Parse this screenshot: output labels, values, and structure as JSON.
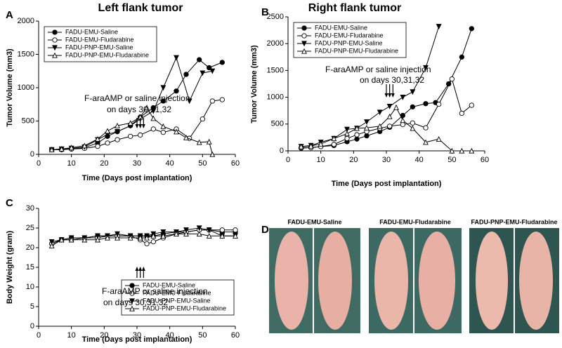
{
  "chart_data": [
    {
      "type": "line",
      "panel": "A",
      "title": "Left flank tumor",
      "xlabel": "Time (Days post implantation)",
      "ylabel": "Tumor Volume (mm3)",
      "xlim": [
        0,
        60
      ],
      "ylim": [
        0,
        2000
      ],
      "xticks": [
        0,
        10,
        20,
        30,
        40,
        50,
        60
      ],
      "yticks": [
        0,
        500,
        1000,
        1500,
        2000
      ],
      "legend": "upper left",
      "annotation": [
        "F-araAMP or saline injection",
        "on days 30,31,32"
      ],
      "series": [
        {
          "name": "FADU-EMU-Saline",
          "color": "#000000",
          "marker": "filled-circle",
          "x": [
            4,
            7,
            10,
            14,
            18,
            21,
            24,
            28,
            31,
            35,
            38,
            42,
            45,
            49,
            52,
            56
          ],
          "values": [
            70,
            70,
            80,
            100,
            170,
            270,
            340,
            430,
            560,
            700,
            800,
            950,
            1200,
            1420,
            1300,
            1380
          ]
        },
        {
          "name": "FADU-EMU-Fludarabine",
          "color": "#000000",
          "marker": "open-circle",
          "x": [
            4,
            7,
            10,
            14,
            18,
            21,
            24,
            28,
            31,
            35,
            38,
            42,
            46,
            50,
            53,
            56
          ],
          "values": [
            70,
            75,
            80,
            90,
            120,
            170,
            220,
            270,
            290,
            380,
            330,
            380,
            240,
            530,
            800,
            820
          ]
        },
        {
          "name": "FADU-PNP-EMU-Saline",
          "color": "#000000",
          "marker": "filled-triangle-down",
          "x": [
            4,
            7,
            10,
            14,
            18,
            21,
            24,
            28,
            31,
            35,
            38,
            42,
            46,
            50,
            53
          ],
          "values": [
            70,
            80,
            90,
            110,
            220,
            300,
            340,
            430,
            530,
            650,
            1000,
            1450,
            800,
            1220,
            1250
          ]
        },
        {
          "name": "FADU-PNP-EMU-Fludarabine",
          "color": "#000000",
          "marker": "open-triangle-up",
          "x": [
            4,
            7,
            10,
            14,
            18,
            21,
            24,
            28,
            31,
            33,
            35,
            38,
            42,
            45,
            49,
            52,
            53
          ],
          "values": [
            70,
            80,
            100,
            130,
            230,
            350,
            430,
            470,
            560,
            700,
            540,
            420,
            340,
            250,
            180,
            190,
            0
          ]
        }
      ]
    },
    {
      "type": "line",
      "panel": "B",
      "title": "Right flank tumor",
      "xlabel": "Time (Days post implantation)",
      "ylabel": "Tumor Volume (mm3)",
      "xlim": [
        0,
        60
      ],
      "ylim": [
        0,
        2500
      ],
      "xticks": [
        0,
        10,
        20,
        30,
        40,
        50,
        60
      ],
      "yticks": [
        0,
        500,
        1000,
        1500,
        2000,
        2500
      ],
      "legend": "upper left",
      "annotation": [
        "F-araAMP or saline injection",
        "on days 30,31,32"
      ],
      "series": [
        {
          "name": "FADU-EMU-Saline",
          "color": "#000000",
          "marker": "filled-circle",
          "x": [
            4,
            7,
            10,
            14,
            18,
            21,
            24,
            28,
            31,
            35,
            38,
            42,
            45,
            49,
            53,
            56
          ],
          "values": [
            50,
            60,
            80,
            100,
            170,
            220,
            280,
            360,
            440,
            660,
            820,
            880,
            900,
            1250,
            1750,
            2280
          ]
        },
        {
          "name": "FADU-EMU-Fludarabine",
          "color": "#000000",
          "marker": "open-circle",
          "x": [
            4,
            7,
            10,
            14,
            18,
            21,
            24,
            28,
            31,
            35,
            38,
            42,
            46,
            50,
            53,
            56
          ],
          "values": [
            60,
            60,
            80,
            120,
            230,
            300,
            360,
            420,
            460,
            490,
            520,
            430,
            870,
            1340,
            700,
            850
          ]
        },
        {
          "name": "FADU-PNP-EMU-Saline",
          "color": "#000000",
          "marker": "filled-triangle-down",
          "x": [
            4,
            7,
            10,
            14,
            18,
            21,
            24,
            28,
            31,
            35,
            38,
            42,
            46
          ],
          "values": [
            80,
            100,
            160,
            230,
            400,
            420,
            540,
            720,
            830,
            1000,
            1100,
            1550,
            2320
          ]
        },
        {
          "name": "FADU-PNP-EMU-Fludarabine",
          "color": "#000000",
          "marker": "open-triangle-up",
          "x": [
            4,
            7,
            10,
            14,
            18,
            21,
            24,
            28,
            31,
            33,
            35,
            38,
            42,
            46,
            50,
            53,
            56
          ],
          "values": [
            80,
            90,
            130,
            230,
            320,
            420,
            430,
            460,
            640,
            810,
            570,
            420,
            160,
            220,
            0,
            0,
            0
          ]
        }
      ]
    },
    {
      "type": "line",
      "panel": "C",
      "xlabel": "Time (Days post implantation)",
      "ylabel": "Body Weight (gram)",
      "xlim": [
        0,
        60
      ],
      "ylim": [
        0,
        30
      ],
      "xticks": [
        0,
        10,
        20,
        30,
        40,
        50,
        60
      ],
      "yticks": [
        0,
        5,
        10,
        15,
        20,
        25,
        30
      ],
      "legend": "lower right",
      "annotation": [
        "F-araAMP or saline injection",
        "on days 30,31,32"
      ],
      "series": [
        {
          "name": "FADU-EMU-Saline",
          "color": "#000000",
          "marker": "filled-circle",
          "x": [
            4,
            7,
            10,
            14,
            18,
            21,
            24,
            28,
            31,
            33,
            35,
            38,
            42,
            45,
            49,
            52,
            56,
            60
          ],
          "values": [
            21,
            22,
            22.5,
            22.5,
            23,
            23,
            23,
            23,
            23,
            23,
            23,
            23.5,
            24,
            24,
            24.5,
            24.5,
            24,
            24
          ]
        },
        {
          "name": "FADU-EMU-Fludarabine",
          "color": "#000000",
          "marker": "open-circle",
          "x": [
            4,
            7,
            10,
            14,
            18,
            21,
            24,
            28,
            31,
            33,
            35,
            38,
            42,
            45,
            49,
            52,
            56,
            60
          ],
          "values": [
            21,
            22,
            22,
            22.5,
            22.5,
            23,
            23,
            23,
            22,
            21,
            21.5,
            22.5,
            23.5,
            24,
            24.5,
            24.5,
            24.5,
            24.5
          ]
        },
        {
          "name": "FADU-PNP-EMU-Saline",
          "color": "#000000",
          "marker": "filled-triangle-down",
          "x": [
            4,
            7,
            10,
            14,
            18,
            21,
            24,
            28,
            31,
            33,
            35,
            38,
            42,
            45,
            49,
            52,
            56,
            60
          ],
          "values": [
            21.5,
            22,
            22.5,
            22.5,
            23,
            23,
            23.5,
            23,
            23,
            23,
            23.5,
            24,
            24,
            24.5,
            25,
            24.5,
            23,
            23
          ]
        },
        {
          "name": "FADU-PNP-EMU-Fludarabine",
          "color": "#000000",
          "marker": "open-triangle-up",
          "x": [
            4,
            7,
            10,
            14,
            18,
            21,
            24,
            28,
            31,
            33,
            35,
            38,
            42,
            45,
            49,
            52,
            56,
            60
          ],
          "values": [
            20.5,
            22,
            22,
            22,
            22,
            22.5,
            22.5,
            22.5,
            22.5,
            22.5,
            23,
            23,
            23.5,
            23.5,
            23.5,
            23,
            23,
            23
          ]
        }
      ]
    }
  ],
  "panel_d": {
    "letter": "D",
    "labels": [
      "FADU-EMU-Saline",
      "FADU-EMU-Fludarabine",
      "FADU-PNP-EMU-Fludarabine"
    ]
  }
}
